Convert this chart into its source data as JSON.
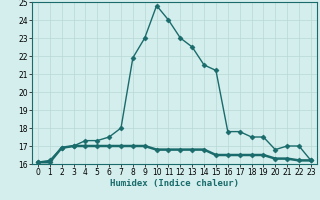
{
  "line1_x": [
    0,
    1,
    2,
    3,
    4,
    5,
    6,
    7,
    8,
    9,
    10,
    11,
    12,
    13,
    14,
    15,
    16,
    17,
    18,
    19,
    20,
    21,
    22,
    23
  ],
  "line1_y": [
    16.1,
    16.2,
    16.9,
    17.0,
    17.3,
    17.3,
    17.5,
    18.0,
    21.9,
    23.0,
    24.8,
    24.0,
    23.0,
    22.5,
    21.5,
    21.2,
    17.8,
    17.8,
    17.5,
    17.5,
    16.8,
    17.0,
    17.0,
    16.2
  ],
  "line2_x": [
    0,
    1,
    2,
    3,
    4,
    5,
    6,
    7,
    8,
    9,
    10,
    11,
    12,
    13,
    14,
    15,
    16,
    17,
    18,
    19,
    20,
    21,
    22,
    23
  ],
  "line2_y": [
    16.1,
    16.1,
    16.9,
    17.0,
    17.0,
    17.0,
    17.0,
    17.0,
    17.0,
    17.0,
    16.8,
    16.8,
    16.8,
    16.8,
    16.8,
    16.5,
    16.5,
    16.5,
    16.5,
    16.5,
    16.3,
    16.3,
    16.2,
    16.2
  ],
  "line_color": "#1a6b6b",
  "bg_color": "#d4eeed",
  "grid_color": "#b8d8d6",
  "xlabel": "Humidex (Indice chaleur)",
  "ylim": [
    16,
    25
  ],
  "xlim": [
    -0.5,
    23.5
  ],
  "yticks": [
    16,
    17,
    18,
    19,
    20,
    21,
    22,
    23,
    24,
    25
  ],
  "xticks": [
    0,
    1,
    2,
    3,
    4,
    5,
    6,
    7,
    8,
    9,
    10,
    11,
    12,
    13,
    14,
    15,
    16,
    17,
    18,
    19,
    20,
    21,
    22,
    23
  ],
  "marker": "D",
  "markersize": 2.5,
  "linewidth1": 1.0,
  "linewidth2": 1.8,
  "tick_fontsize": 5.5,
  "label_fontsize": 6.5
}
